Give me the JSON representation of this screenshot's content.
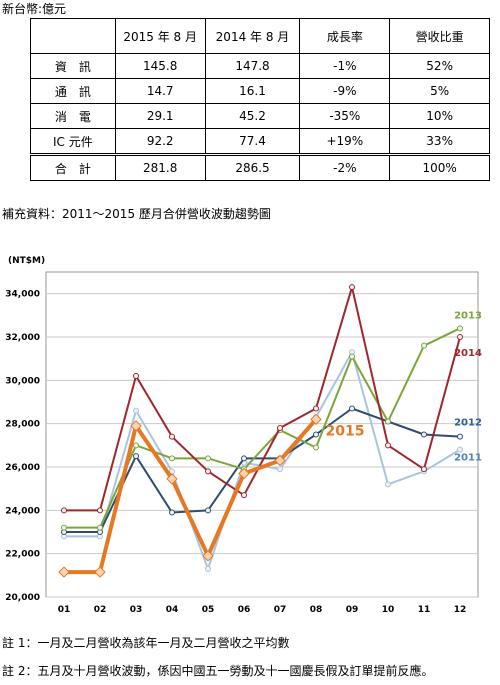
{
  "header": {
    "unit": "新台幣:億元"
  },
  "table": {
    "columns": [
      "",
      "2015 年 8 月",
      "2014 年 8 月",
      "成長率",
      "營收比重"
    ],
    "rows": [
      [
        "資　訊",
        "145.8",
        "147.8",
        "-1%",
        "52%"
      ],
      [
        "通　訊",
        "14.7",
        "16.1",
        "-9%",
        "5%"
      ],
      [
        "消　電",
        "29.1",
        "45.2",
        "-35%",
        "10%"
      ],
      [
        "IC 元件",
        "92.2",
        "77.4",
        "+19%",
        "33%"
      ],
      [
        "合　計",
        "281.8",
        "286.5",
        "-2%",
        "100%"
      ]
    ]
  },
  "supplement": "補充資料：2011～2015 歷月合併營收波動趨勢圖",
  "chart_data": {
    "type": "line",
    "y_label": "(NT$M)",
    "categories": [
      "01",
      "02",
      "03",
      "04",
      "05",
      "06",
      "07",
      "08",
      "09",
      "10",
      "11",
      "12"
    ],
    "ylim": [
      20000,
      35000
    ],
    "yticks": [
      {
        "value": 20000,
        "label": "20,000"
      },
      {
        "value": 22000,
        "label": "22,000"
      },
      {
        "value": 24000,
        "label": "24,000"
      },
      {
        "value": 26000,
        "label": "26,000"
      },
      {
        "value": 28000,
        "label": "28,000"
      },
      {
        "value": 30000,
        "label": "30,000"
      },
      {
        "value": 32000,
        "label": "32,000"
      },
      {
        "value": 34000,
        "label": "34,000"
      }
    ],
    "grid": true,
    "series": [
      {
        "name": "2011",
        "color": "#a9c4e0",
        "label_color": "#4f81bd",
        "values": [
          22800,
          22800,
          28600,
          25800,
          21300,
          26200,
          25900,
          28300,
          31300,
          25200,
          25800,
          26800
        ]
      },
      {
        "name": "2012",
        "color": "#2e4d70",
        "label_color": "#2e5f9a",
        "values": [
          23000,
          23000,
          26500,
          23900,
          24000,
          26400,
          26400,
          27500,
          28700,
          28100,
          27500,
          27400
        ]
      },
      {
        "name": "2013",
        "color": "#7aa63a",
        "label_color": "#7aa63a",
        "values": [
          23200,
          23200,
          27000,
          26400,
          26400,
          25900,
          27700,
          26900,
          31100,
          28100,
          31600,
          32400
        ]
      },
      {
        "name": "2014",
        "color": "#a0262b",
        "label_color": "#a0262b",
        "values": [
          24000,
          24000,
          30200,
          27400,
          25800,
          24700,
          27800,
          28700,
          34300,
          27000,
          25900,
          32000
        ]
      },
      {
        "name": "2015",
        "color": "#e87722",
        "label_color": "#e87722",
        "values": [
          21150,
          21150,
          27900,
          25450,
          21900,
          25700,
          26300,
          28200,
          null,
          null,
          null,
          null
        ]
      }
    ]
  },
  "notes": [
    "註 1：一月及二月營收為該年一月及二月營收之平均數",
    "註 2：五月及十月營收波動，係因中國五一勞動及十一國慶長假及訂單提前反應。"
  ]
}
